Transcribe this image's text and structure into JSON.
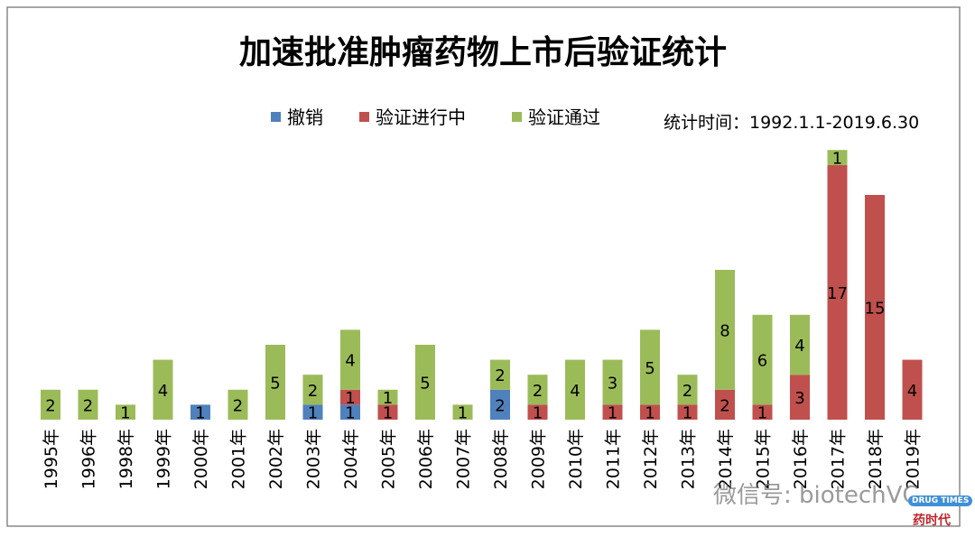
{
  "chart_data": {
    "type": "bar",
    "stacked": true,
    "title": "加速批准肿瘤药物上市后验证统计",
    "annotation": "统计时间：1992.1.1-2019.6.30",
    "legend_position": "top",
    "categories": [
      "1995年",
      "1996年",
      "1998年",
      "1999年",
      "2000年",
      "2001年",
      "2002年",
      "2003年",
      "2004年",
      "2005年",
      "2006年",
      "2007年",
      "2008年",
      "2009年",
      "2010年",
      "2011年",
      "2012年",
      "2013年",
      "2014年",
      "2015年",
      "2016年",
      "2017年",
      "2018年",
      "2019年"
    ],
    "series": [
      {
        "name": "撤销",
        "color": "#4f81bd",
        "values": [
          0,
          0,
          0,
          0,
          1,
          0,
          0,
          1,
          1,
          0,
          0,
          0,
          2,
          0,
          0,
          0,
          0,
          0,
          0,
          0,
          0,
          0,
          0,
          0
        ]
      },
      {
        "name": "验证进行中",
        "color": "#c0504d",
        "values": [
          0,
          0,
          0,
          0,
          0,
          0,
          0,
          0,
          1,
          1,
          0,
          0,
          0,
          1,
          0,
          1,
          1,
          1,
          2,
          1,
          3,
          17,
          15,
          4
        ]
      },
      {
        "name": "验证通过",
        "color": "#9bbb59",
        "values": [
          2,
          2,
          1,
          4,
          0,
          2,
          5,
          2,
          4,
          1,
          5,
          1,
          2,
          2,
          4,
          3,
          5,
          2,
          8,
          6,
          4,
          1,
          0,
          0
        ]
      }
    ],
    "ylim": [
      0,
      19
    ],
    "grid": false,
    "xlabel": "",
    "ylabel": ""
  },
  "watermark": {
    "text": "微信号: biotechVC",
    "logo_en": "DRUG TIMES",
    "logo_cn": "药时代"
  }
}
